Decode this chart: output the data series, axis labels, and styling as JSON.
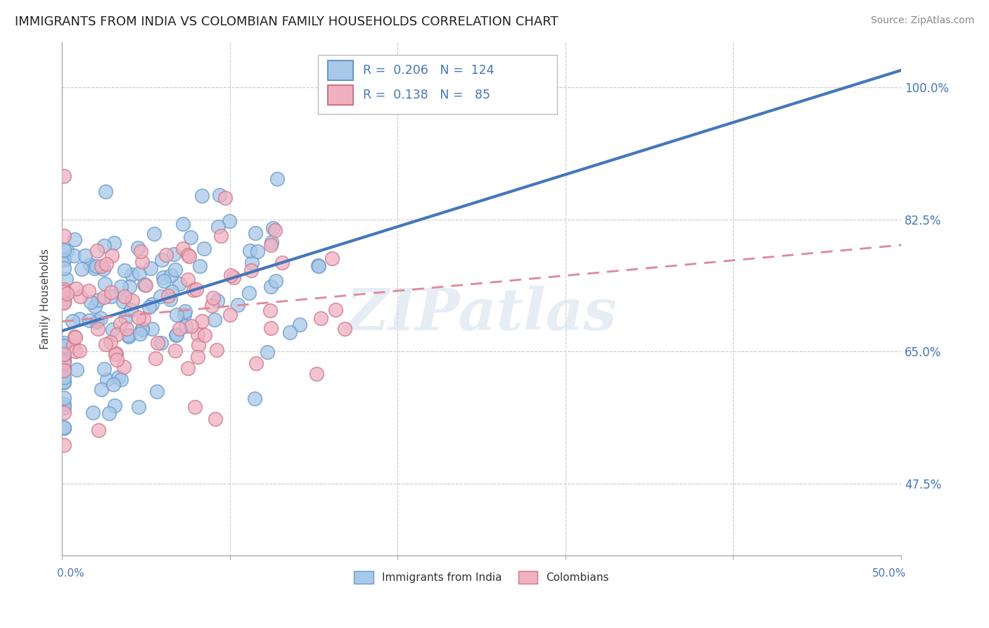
{
  "title": "IMMIGRANTS FROM INDIA VS COLOMBIAN FAMILY HOUSEHOLDS CORRELATION CHART",
  "source": "Source: ZipAtlas.com",
  "ylabel": "Family Households",
  "y_ticks": [
    0.475,
    0.65,
    0.825,
    1.0
  ],
  "y_tick_labels": [
    "47.5%",
    "65.0%",
    "82.5%",
    "100.0%"
  ],
  "x_range": [
    0.0,
    0.5
  ],
  "y_range": [
    0.38,
    1.06
  ],
  "legend_label_india": "Immigrants from India",
  "legend_label_colombia": "Colombians",
  "blue_fill": "#a8c8e8",
  "blue_edge": "#6699cc",
  "pink_fill": "#f0b0c0",
  "pink_edge": "#cc7788",
  "blue_line": "#4477bb",
  "pink_line": "#dd8899",
  "R_blue": 0.206,
  "N_blue": 124,
  "R_pink": 0.138,
  "N_pink": 85,
  "watermark": "ZIPatlas",
  "background_color": "#ffffff",
  "grid_color": "#cccccc",
  "title_fontsize": 13,
  "source_fontsize": 10,
  "tick_label_color": "#4477bb"
}
